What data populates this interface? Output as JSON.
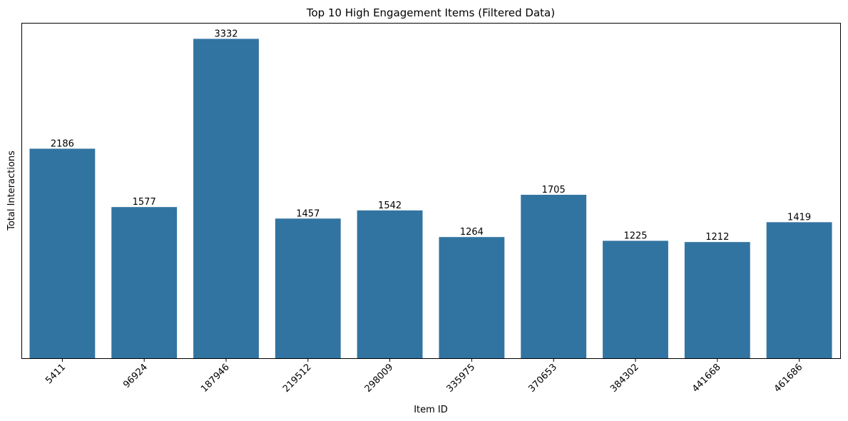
{
  "chart_data": {
    "type": "bar",
    "title": "Top 10 High Engagement Items (Filtered Data)",
    "xlabel": "Item ID",
    "ylabel": "Total Interactions",
    "categories": [
      "5411",
      "96924",
      "187946",
      "219512",
      "298009",
      "335975",
      "370653",
      "384302",
      "441668",
      "461686"
    ],
    "values": [
      2186,
      1577,
      3332,
      1457,
      1542,
      1264,
      1705,
      1225,
      1212,
      1419
    ],
    "ylim": [
      0,
      3499
    ],
    "grid": false,
    "bar_color": "#3274a1",
    "y_ticks_shown": false,
    "x_tick_rotation": 45
  }
}
